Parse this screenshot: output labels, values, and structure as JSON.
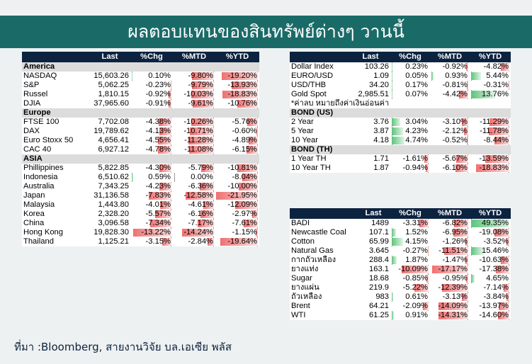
{
  "title": "ผลตอบแทนของสินทรัพย์ต่างๆ วานนี้",
  "headers": [
    "Last",
    "%Chg",
    "%MTD",
    "%YTD"
  ],
  "equities": [
    {
      "section": "America"
    },
    {
      "name": "NASDAQ",
      "last": "15,603.26",
      "chg": "0.10%",
      "mtd": "-9.80%",
      "ytd": "-19.20%",
      "v": [
        0.1,
        -9.8,
        -19.2
      ]
    },
    {
      "name": "S&P",
      "last": "5,062.25",
      "chg": "-0.23%",
      "mtd": "-9.79%",
      "ytd": "-13.93%",
      "v": [
        -0.23,
        -9.79,
        -13.93
      ]
    },
    {
      "name": "Russel",
      "last": "1,810.15",
      "chg": "-0.92%",
      "mtd": "-10.03%",
      "ytd": "-18.83%",
      "v": [
        -0.92,
        -10.03,
        -18.83
      ]
    },
    {
      "name": "DJIA",
      "last": "37,965.60",
      "chg": "-0.91%",
      "mtd": "-9.61%",
      "ytd": "-10.76%",
      "v": [
        -0.91,
        -9.61,
        -10.76
      ]
    },
    {
      "section": "Europe"
    },
    {
      "name": "FTSE 100",
      "last": "7,702.08",
      "chg": "-4.38%",
      "mtd": "-10.26%",
      "ytd": "-5.76%",
      "v": [
        -4.38,
        -10.26,
        -5.76
      ]
    },
    {
      "name": "DAX",
      "last": "19,789.62",
      "chg": "-4.13%",
      "mtd": "-10.71%",
      "ytd": "-0.60%",
      "v": [
        -4.13,
        -10.71,
        -0.6
      ]
    },
    {
      "name": "Euro Stoxx 50",
      "last": "4,656.41",
      "chg": "-4.55%",
      "mtd": "-11.28%",
      "ytd": "-4.89%",
      "v": [
        -4.55,
        -11.28,
        -4.89
      ]
    },
    {
      "name": "CAC 40",
      "last": "6,927.12",
      "chg": "-4.78%",
      "mtd": "-11.08%",
      "ytd": "-6.15%",
      "v": [
        -4.78,
        -11.08,
        -6.15
      ]
    },
    {
      "section": "ASIA"
    },
    {
      "name": "Phillippines",
      "last": "5,822.85",
      "chg": "-4.30%",
      "mtd": "-5.79%",
      "ytd": "-10.81%",
      "v": [
        -4.3,
        -5.79,
        -10.81
      ]
    },
    {
      "name": "Indonesia",
      "last": "6,510.62",
      "chg": "0.59%",
      "mtd": "0.00%",
      "ytd": "-8.04%",
      "v": [
        0.59,
        0.0,
        -8.04
      ]
    },
    {
      "name": "Australia",
      "last": "7,343.25",
      "chg": "-4.23%",
      "mtd": "-6.36%",
      "ytd": "-10.00%",
      "v": [
        -4.23,
        -6.36,
        -10.0
      ]
    },
    {
      "name": "Japan",
      "last": "31,136.58",
      "chg": "-7.83%",
      "mtd": "-12.58%",
      "ytd": "-21.95%",
      "v": [
        -7.83,
        -12.58,
        -21.95
      ]
    },
    {
      "name": "Malaysia",
      "last": "1,443.80",
      "chg": "-4.01%",
      "mtd": "-4.61%",
      "ytd": "-12.09%",
      "v": [
        -4.01,
        -4.61,
        -12.09
      ]
    },
    {
      "name": "Korea",
      "last": "2,328.20",
      "chg": "-5.57%",
      "mtd": "-6.16%",
      "ytd": "-2.97%",
      "v": [
        -5.57,
        -6.16,
        -2.97
      ]
    },
    {
      "name": "China",
      "last": "3,096.58",
      "chg": "-7.34%",
      "mtd": "-7.17%",
      "ytd": "-7.61%",
      "v": [
        -7.34,
        -7.17,
        -7.61
      ]
    },
    {
      "name": "Hong Kong",
      "last": "19,828.30",
      "chg": "-13.22%",
      "mtd": "-14.24%",
      "ytd": "-1.15%",
      "v": [
        -13.22,
        -14.24,
        -1.15
      ]
    },
    {
      "name": "Thailand",
      "last": "1,125.21",
      "chg": "-3.15%",
      "mtd": "-2.84%",
      "ytd": "-19.64%",
      "v": [
        -3.15,
        -2.84,
        -19.64
      ]
    }
  ],
  "fx_bonds": [
    {
      "name": "Dollar Index",
      "last": "103.26",
      "chg": "0.23%",
      "mtd": "-0.92%",
      "ytd": "-4.82%",
      "v": [
        0.23,
        -0.92,
        -4.82
      ]
    },
    {
      "name": "EURO/USD",
      "last": "1.09",
      "chg": "0.05%",
      "mtd": "0.93%",
      "ytd": "5.44%",
      "v": [
        0.05,
        0.93,
        5.44
      ]
    },
    {
      "name": "USD/THB",
      "last": "34.20",
      "chg": "0.17%",
      "mtd": "-0.81%",
      "ytd": "-0.31%",
      "v": [
        0.17,
        -0.81,
        -0.31
      ]
    },
    {
      "name": "Gold Spot",
      "last": "2,985.51",
      "chg": "0.07%",
      "mtd": "-4.42%",
      "ytd": "13.76%",
      "v": [
        0.07,
        -4.42,
        13.76
      ]
    },
    {
      "note": "*ค่าลบ หมายถึงค่าเงินอ่อนค่า"
    },
    {
      "section": "BOND (US)"
    },
    {
      "name": "2 Year",
      "last": "3.76",
      "chg": "3.04%",
      "mtd": "-3.10%",
      "ytd": "-11.29%",
      "v": [
        3.04,
        -3.1,
        -11.29
      ]
    },
    {
      "name": "5 Year",
      "last": "3.87",
      "chg": "4.23%",
      "mtd": "-2.12%",
      "ytd": "-11.78%",
      "v": [
        4.23,
        -2.12,
        -11.78
      ]
    },
    {
      "name": "10 Year",
      "last": "4.18",
      "chg": "4.74%",
      "mtd": "-0.52%",
      "ytd": "-8.44%",
      "v": [
        4.74,
        -0.52,
        -8.44
      ]
    },
    {
      "section": "BOND (TH)"
    },
    {
      "name": "1 Year TH",
      "last": "1.71",
      "chg": "-1.61%",
      "mtd": "-5.67%",
      "ytd": "-13.59%",
      "v": [
        -1.61,
        -5.67,
        -13.59
      ]
    },
    {
      "name": "10 Year TH",
      "last": "1.87",
      "chg": "-0.94%",
      "mtd": "-6.10%",
      "ytd": "-18.83%",
      "v": [
        -0.94,
        -6.1,
        -18.83
      ]
    }
  ],
  "commodities": [
    {
      "name": "BADI",
      "last": "1489",
      "chg": "-3.31%",
      "mtd": "-6.82%",
      "ytd": "49.35%",
      "v": [
        -3.31,
        -6.82,
        49.35
      ]
    },
    {
      "name": "Newcastle Coal",
      "last": "107.1",
      "chg": "1.52%",
      "mtd": "-6.95%",
      "ytd": "-19.08%",
      "v": [
        1.52,
        -6.95,
        -19.08
      ]
    },
    {
      "name": "Cotton",
      "last": "65.99",
      "chg": "4.15%",
      "mtd": "-1.26%",
      "ytd": "-3.52%",
      "v": [
        4.15,
        -1.26,
        -3.52
      ]
    },
    {
      "name": "Natural Gas",
      "last": "3.645",
      "chg": "-0.27%",
      "mtd": "-11.51%",
      "ytd": "15.46%",
      "v": [
        -0.27,
        -11.51,
        15.46
      ]
    },
    {
      "name": "กากถั่วเหลือง",
      "last": "288.4",
      "chg": "1.87%",
      "mtd": "-1.47%",
      "ytd": "-10.63%",
      "v": [
        1.87,
        -1.47,
        -10.63
      ]
    },
    {
      "name": "ยางแท่ง",
      "last": "163.1",
      "chg": "-10.09%",
      "mtd": "-17.17%",
      "ytd": "-17.38%",
      "v": [
        -10.09,
        -17.17,
        -17.38
      ]
    },
    {
      "name": "Sugar",
      "last": "18.68",
      "chg": "-0.85%",
      "mtd": "-0.95%",
      "ytd": "4.65%",
      "v": [
        -0.85,
        -0.95,
        4.65
      ]
    },
    {
      "name": "ยางแผ่น",
      "last": "219.9",
      "chg": "-5.22%",
      "mtd": "-12.39%",
      "ytd": "-7.14%",
      "v": [
        -5.22,
        -12.39,
        -7.14
      ]
    },
    {
      "name": "ถั่วเหลือง",
      "last": "983",
      "chg": "0.61%",
      "mtd": "-3.13%",
      "ytd": "-3.84%",
      "v": [
        0.61,
        -3.13,
        -3.84
      ]
    },
    {
      "name": "Brent",
      "last": "64.21",
      "chg": "-2.09%",
      "mtd": "-14.09%",
      "ytd": "-13.97%",
      "v": [
        -2.09,
        -14.09,
        -13.97
      ]
    },
    {
      "name": "WTI",
      "last": "61.25",
      "chg": "0.91%",
      "mtd": "-14.31%",
      "ytd": "-14.60%",
      "v": [
        0.91,
        -14.31,
        -14.6
      ]
    }
  ],
  "source": "ที่มา :Bloomberg, สายงานวิจัย บล.เอเซีย พลัส"
}
